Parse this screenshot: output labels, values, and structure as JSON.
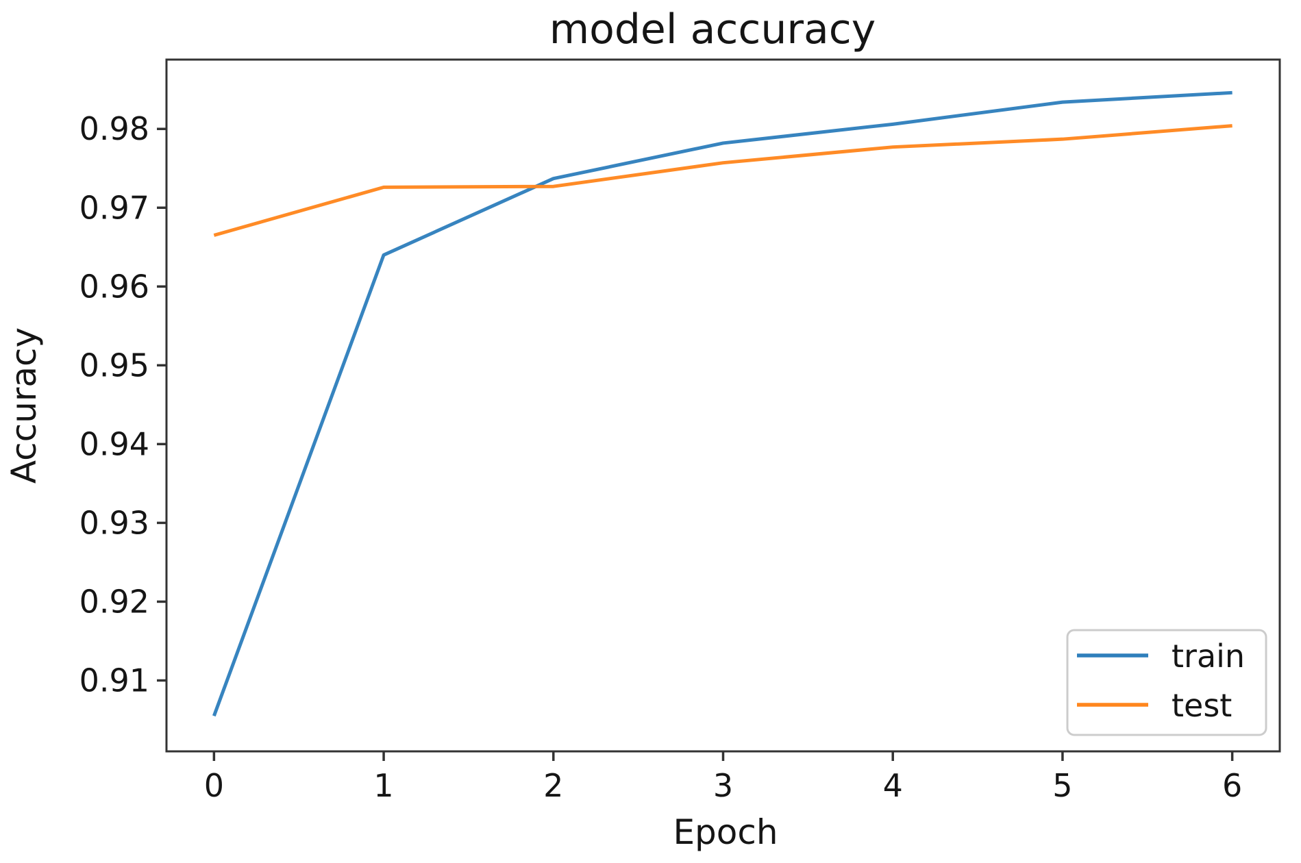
{
  "figure": {
    "title": "model accuracy",
    "xlabel": "Epoch",
    "ylabel": "Accuracy"
  },
  "chart_data": {
    "type": "line",
    "title": "model accuracy",
    "xlabel": "Epoch",
    "ylabel": "Accuracy",
    "x": [
      0,
      1,
      2,
      3,
      4,
      5,
      6
    ],
    "series": [
      {
        "name": "train",
        "color": "#2f7fbc",
        "values": [
          0.9055,
          0.964,
          0.9737,
          0.9782,
          0.9806,
          0.9834,
          0.9846
        ]
      },
      {
        "name": "test",
        "color": "#ff861d",
        "values": [
          0.9665,
          0.9726,
          0.9727,
          0.9757,
          0.9777,
          0.9787,
          0.9804
        ]
      }
    ],
    "xlim": [
      -0.28,
      6.28
    ],
    "ylim": [
      0.901,
      0.9888
    ],
    "x_ticks": [
      0,
      1,
      2,
      3,
      4,
      5,
      6
    ],
    "x_tick_labels": [
      "0",
      "1",
      "2",
      "3",
      "4",
      "5",
      "6"
    ],
    "y_ticks": [
      0.91,
      0.92,
      0.93,
      0.94,
      0.95,
      0.96,
      0.97,
      0.98
    ],
    "y_tick_labels": [
      "0.91",
      "0.92",
      "0.93",
      "0.94",
      "0.95",
      "0.96",
      "0.97",
      "0.98"
    ],
    "grid": false,
    "legend": {
      "position": "lower right",
      "entries": [
        "train",
        "test"
      ]
    }
  },
  "style_colors": {
    "spine": "#333333",
    "text": "#151515",
    "legend_border": "#cccccc",
    "background": "#ffffff",
    "train_line": "#2f7fbc",
    "test_line": "#ff861d"
  }
}
